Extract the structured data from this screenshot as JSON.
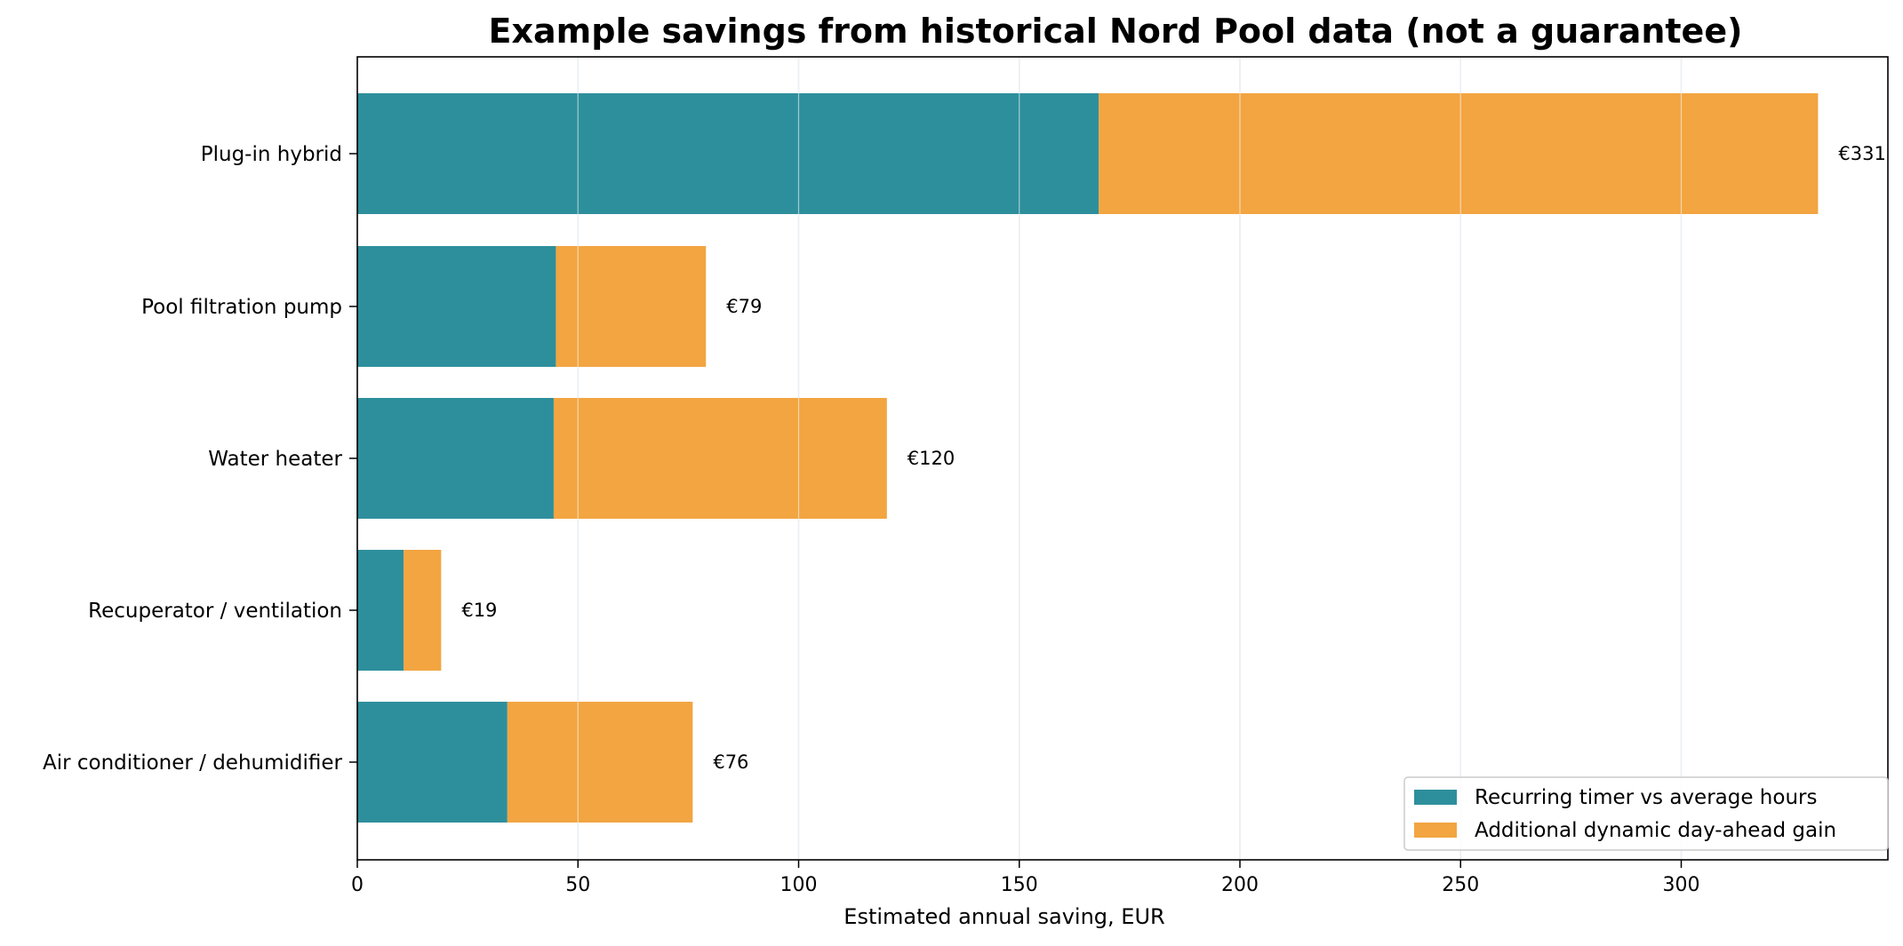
{
  "chart_data": {
    "type": "bar",
    "orientation": "horizontal",
    "stacked": true,
    "title": "Example savings from historical Nord Pool data (not a guarantee)",
    "xlabel": "Estimated annual saving, EUR",
    "ylabel": "",
    "xlim": [
      0,
      345
    ],
    "xticks": [
      0,
      50,
      100,
      150,
      200,
      250,
      300
    ],
    "grid": "vertical",
    "categories": [
      "Plug-in hybrid",
      "Pool filtration pump",
      "Water heater",
      "Recuperator / ventilation",
      "Air conditioner / dehumidifier"
    ],
    "series": [
      {
        "name": "Recurring timer vs average hours",
        "color": "#2e8f9c",
        "values": [
          168,
          45,
          44.5,
          10.5,
          34
        ]
      },
      {
        "name": "Additional dynamic day-ahead gain",
        "color": "#f2a541",
        "values": [
          163,
          34,
          75.5,
          8.5,
          42
        ]
      }
    ],
    "total_labels": [
      "€331",
      "€79",
      "€120",
      "€19",
      "€76"
    ],
    "legend_position": "bottom-right"
  },
  "colors": {
    "grid": "#d9e1e8",
    "axis": "#000000",
    "text": "#000000"
  }
}
